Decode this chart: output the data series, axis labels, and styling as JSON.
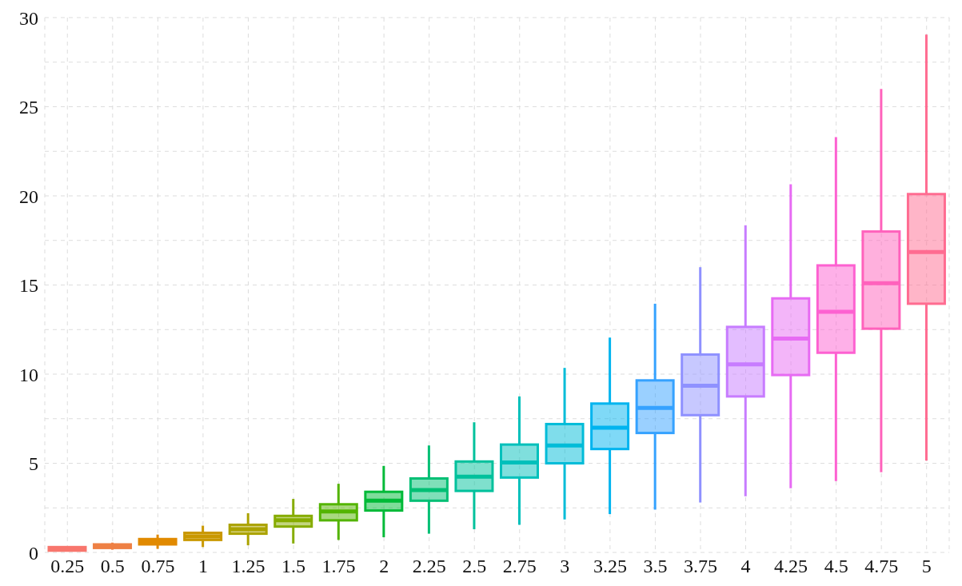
{
  "chart_data": {
    "type": "box",
    "categories": [
      "0.25",
      "0.5",
      "0.75",
      "1",
      "1.25",
      "1.5",
      "1.75",
      "2",
      "2.25",
      "2.5",
      "2.75",
      "3",
      "3.25",
      "3.5",
      "3.75",
      "4",
      "4.25",
      "4.5",
      "4.75",
      "5"
    ],
    "colors": [
      "#f8766d",
      "#ee8044",
      "#e18a00",
      "#c99800",
      "#aba300",
      "#86ac00",
      "#53b400",
      "#00ba38",
      "#00bf74",
      "#00c19c",
      "#00c0bb",
      "#00bcd8",
      "#00b4ef",
      "#35a2ff",
      "#8f91ff",
      "#c77cff",
      "#e76bf3",
      "#fd61d1",
      "#ff62bc",
      "#ff6c91"
    ],
    "boxes": [
      {
        "low": 0.05,
        "q1": 0.1,
        "median": 0.2,
        "q3": 0.3,
        "high": 0.35
      },
      {
        "low": 0.15,
        "q1": 0.25,
        "median": 0.35,
        "q3": 0.45,
        "high": 0.55
      },
      {
        "low": 0.2,
        "q1": 0.45,
        "median": 0.6,
        "q3": 0.75,
        "high": 1.0
      },
      {
        "low": 0.3,
        "q1": 0.7,
        "median": 0.9,
        "q3": 1.1,
        "high": 1.5
      },
      {
        "low": 0.4,
        "q1": 1.05,
        "median": 1.3,
        "q3": 1.55,
        "high": 2.2
      },
      {
        "low": 0.5,
        "q1": 1.45,
        "median": 1.8,
        "q3": 2.05,
        "high": 3.0
      },
      {
        "low": 0.7,
        "q1": 1.8,
        "median": 2.3,
        "q3": 2.7,
        "high": 3.85
      },
      {
        "low": 0.85,
        "q1": 2.35,
        "median": 2.9,
        "q3": 3.4,
        "high": 4.85
      },
      {
        "low": 1.05,
        "q1": 2.9,
        "median": 3.5,
        "q3": 4.15,
        "high": 6.0
      },
      {
        "low": 1.3,
        "q1": 3.45,
        "median": 4.25,
        "q3": 5.1,
        "high": 7.3
      },
      {
        "low": 1.55,
        "q1": 4.2,
        "median": 5.05,
        "q3": 6.05,
        "high": 8.75
      },
      {
        "low": 1.85,
        "q1": 5.0,
        "median": 6.0,
        "q3": 7.2,
        "high": 10.35
      },
      {
        "low": 2.15,
        "q1": 5.8,
        "median": 7.0,
        "q3": 8.35,
        "high": 12.05
      },
      {
        "low": 2.4,
        "q1": 6.7,
        "median": 8.1,
        "q3": 9.65,
        "high": 13.95
      },
      {
        "low": 2.8,
        "q1": 7.7,
        "median": 9.35,
        "q3": 11.1,
        "high": 16.0
      },
      {
        "low": 3.15,
        "q1": 8.75,
        "median": 10.55,
        "q3": 12.65,
        "high": 18.35
      },
      {
        "low": 3.6,
        "q1": 9.95,
        "median": 12.0,
        "q3": 14.25,
        "high": 20.65
      },
      {
        "low": 4.0,
        "q1": 11.2,
        "median": 13.5,
        "q3": 16.1,
        "high": 23.3
      },
      {
        "low": 4.5,
        "q1": 12.55,
        "median": 15.1,
        "q3": 18.0,
        "high": 26.0
      },
      {
        "low": 5.15,
        "q1": 13.95,
        "median": 16.85,
        "q3": 20.1,
        "high": 29.05
      }
    ],
    "ylim": [
      0,
      30
    ],
    "yticks": [
      0,
      {
        "value": 2.5,
        "label": null
      },
      5,
      {
        "value": 7.5,
        "label": null
      },
      10,
      {
        "value": 12.5,
        "label": null
      },
      15,
      {
        "value": 17.5,
        "label": null
      },
      20,
      {
        "value": 22.5,
        "label": null
      },
      25,
      {
        "value": 27.5,
        "label": null
      },
      30
    ],
    "grid": true
  }
}
